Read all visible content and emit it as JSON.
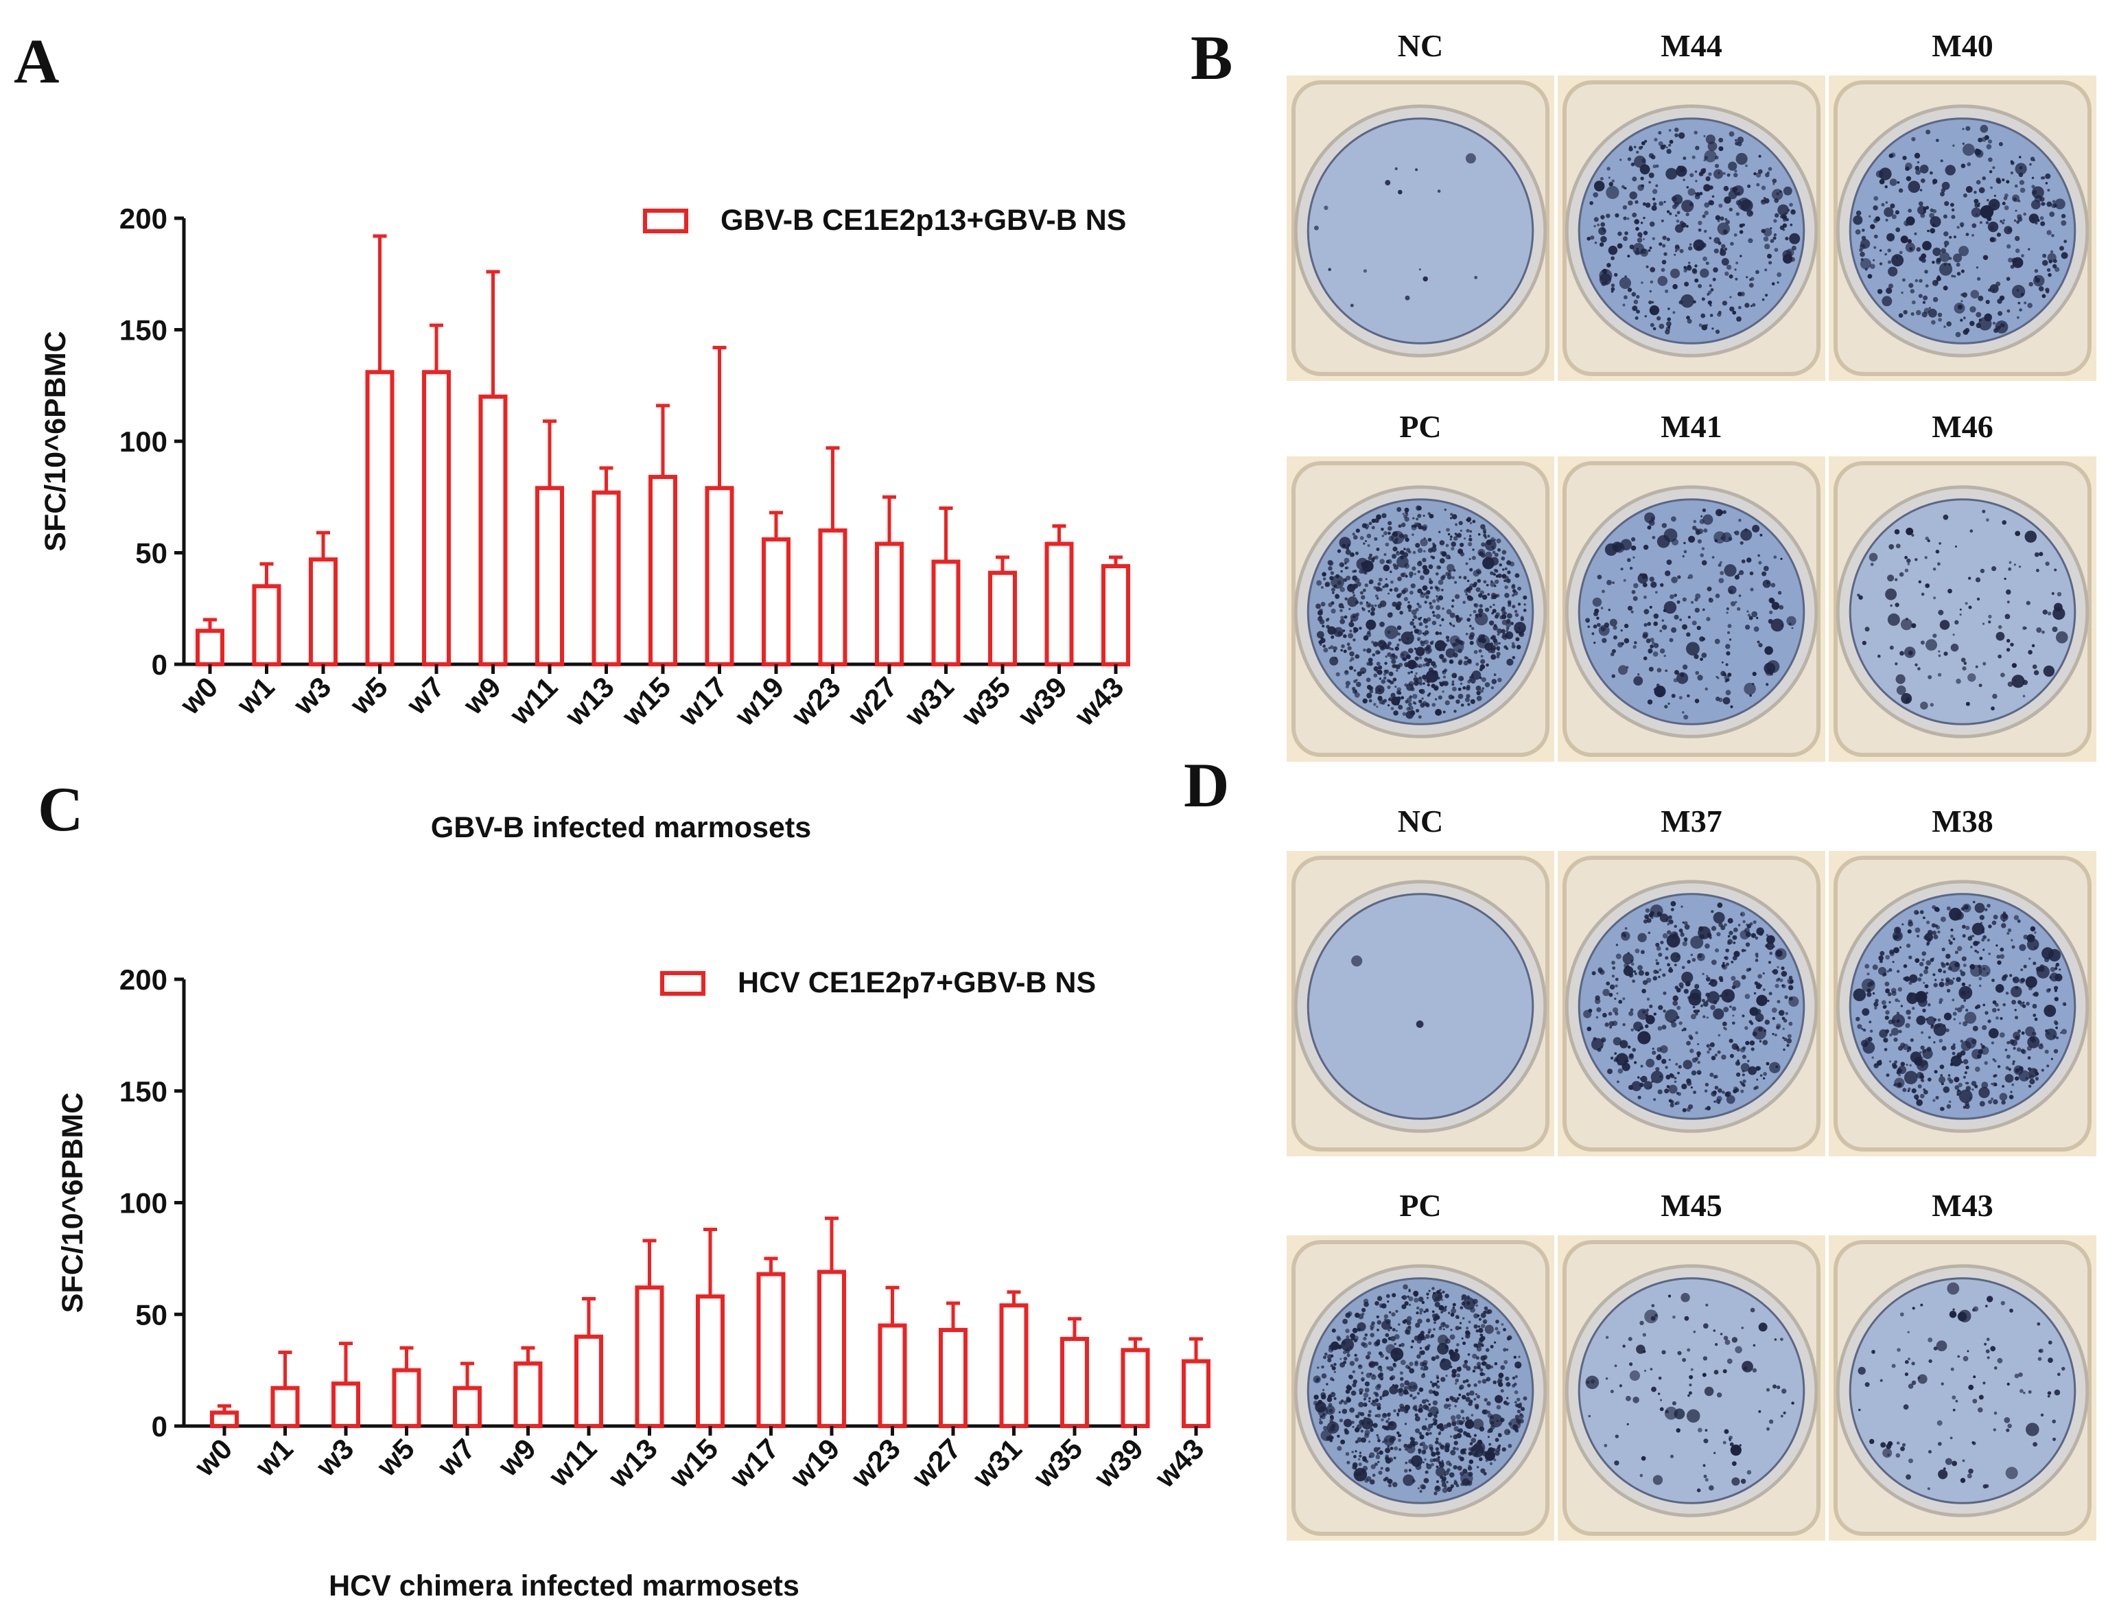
{
  "panels": {
    "a": "A",
    "b": "B",
    "c": "C",
    "d": "D"
  },
  "colors": {
    "bar": "#ee2222",
    "axis": "#111111",
    "well_bg": "#f3e7cf",
    "membrane": "#9fb4d6",
    "spot": "#1e2440"
  },
  "chart_data": [
    {
      "type": "bar",
      "panel": "A",
      "categories": [
        "w0",
        "w1",
        "w3",
        "w5",
        "w7",
        "w9",
        "w11",
        "w13",
        "w15",
        "w17",
        "w19",
        "w23",
        "w27",
        "w31",
        "w35",
        "w39",
        "w43"
      ],
      "series": [
        {
          "name": "GBV-B CE1E2p13+GBV-B NS",
          "values": [
            15,
            35,
            47,
            131,
            131,
            120,
            79,
            77,
            84,
            79,
            56,
            60,
            54,
            46,
            41,
            54,
            44
          ],
          "error_upper": [
            20,
            45,
            59,
            192,
            152,
            176,
            109,
            88,
            116,
            142,
            68,
            97,
            75,
            70,
            48,
            62,
            48
          ]
        }
      ],
      "title": "",
      "xlabel": "GBV-B infected marmosets",
      "ylabel": "SFC/10^6PBMC",
      "ylim": [
        0,
        200
      ],
      "yticks": [
        0,
        50,
        100,
        150,
        200
      ],
      "legend_position": "top-right"
    },
    {
      "type": "bar",
      "panel": "C",
      "categories": [
        "w0",
        "w1",
        "w3",
        "w5",
        "w7",
        "w9",
        "w11",
        "w13",
        "w15",
        "w17",
        "w19",
        "w23",
        "w27",
        "w31",
        "w35",
        "w39",
        "w43"
      ],
      "series": [
        {
          "name": "HCV CE1E2p7+GBV-B NS",
          "values": [
            6,
            17,
            19,
            25,
            17,
            28,
            40,
            62,
            58,
            68,
            69,
            45,
            43,
            54,
            39,
            34,
            29
          ],
          "error_upper": [
            9,
            33,
            37,
            35,
            28,
            35,
            57,
            83,
            88,
            75,
            93,
            62,
            55,
            60,
            48,
            39,
            39
          ]
        }
      ],
      "title": "",
      "xlabel": "HCV chimera infected marmosets",
      "ylabel": "SFC/10^6PBMC",
      "ylim": [
        0,
        200
      ],
      "yticks": [
        0,
        50,
        100,
        150,
        200
      ],
      "legend_position": "top-right"
    }
  ],
  "wells": {
    "b_top": [
      "NC",
      "M44",
      "M40"
    ],
    "b_bottom": [
      "PC",
      "M41",
      "M46"
    ],
    "d_top": [
      "NC",
      "M37",
      "M38"
    ],
    "d_bottom": [
      "PC",
      "M45",
      "M43"
    ]
  },
  "well_density": {
    "b_top": [
      0.01,
      0.45,
      0.4
    ],
    "b_bottom": [
      1.0,
      0.3,
      0.15
    ],
    "d_top": [
      0.0,
      0.55,
      0.6
    ],
    "d_bottom": [
      1.0,
      0.12,
      0.12
    ]
  }
}
